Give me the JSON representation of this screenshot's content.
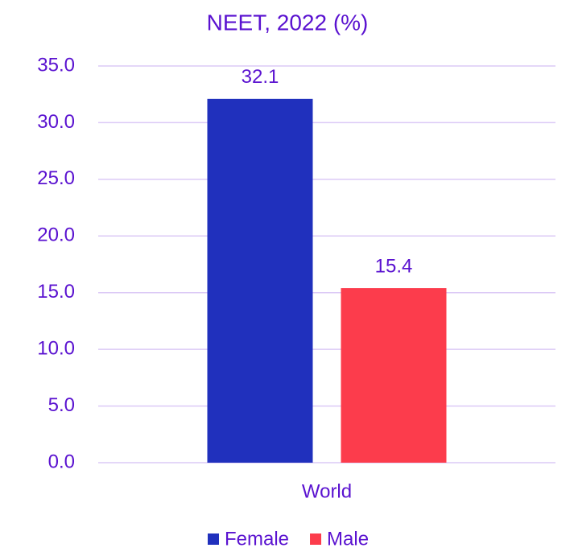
{
  "chart_data": {
    "type": "bar",
    "title": "NEET, 2022 (%)",
    "categories": [
      "World"
    ],
    "series": [
      {
        "name": "Female",
        "color": "#2030bd",
        "values": [
          32.1
        ]
      },
      {
        "name": "Male",
        "color": "#fc3c4c",
        "values": [
          15.4
        ]
      }
    ],
    "ylim": [
      0,
      35
    ],
    "yticks": [
      {
        "value": 0,
        "label": "0.0"
      },
      {
        "value": 5,
        "label": "5.0"
      },
      {
        "value": 10,
        "label": "10.0"
      },
      {
        "value": 15,
        "label": "15.0"
      },
      {
        "value": 20,
        "label": "20.0"
      },
      {
        "value": 25,
        "label": "25.0"
      },
      {
        "value": 30,
        "label": "30.0"
      },
      {
        "value": 35,
        "label": "35.0"
      }
    ],
    "grid": true,
    "legend": "bottom"
  }
}
